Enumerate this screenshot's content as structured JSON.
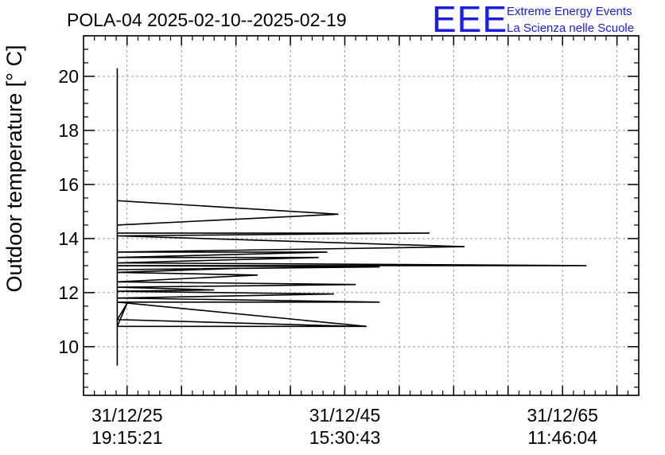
{
  "header": {
    "title": "POLA-04 2025-02-10--2025-02-19",
    "logo_text": "EEE",
    "logo_line1": "Extreme Energy Events",
    "logo_line2": "La Scienza nelle Scuole",
    "logo_color": "#1a1aff"
  },
  "chart_data": {
    "type": "line",
    "title": "POLA-04 2025-02-10--2025-02-19",
    "ylabel": "Outdoor temperature [° C]",
    "xlabel": "",
    "ylim": [
      8.2,
      21.5
    ],
    "xlim": [
      -0.2,
      2.35
    ],
    "yticks": [
      10,
      12,
      14,
      16,
      18,
      20
    ],
    "xticks": [
      {
        "value": 0,
        "label_date": "31/12/25",
        "label_time": "19:15:21"
      },
      {
        "value": 1,
        "label_date": "31/12/45",
        "label_time": "15:30:43"
      },
      {
        "value": 2,
        "label_date": "31/12/65",
        "label_time": "11:46:04"
      }
    ],
    "grid": true,
    "line_color": "#000000",
    "series": [
      {
        "x": [
          -0.045,
          -0.045,
          -0.045,
          0.97,
          -0.045,
          -0.045,
          1.39,
          -0.045,
          1.55,
          -0.045,
          0.92,
          -0.045,
          0.88,
          -0.045,
          2.11,
          -0.045,
          1.16,
          -0.045,
          0.52,
          -0.045,
          0.6,
          -0.045,
          1.05,
          -0.045,
          0.4,
          -0.045,
          0.95,
          -0.045,
          1.16,
          -0.045,
          1.1,
          -0.045,
          0.0,
          -0.045,
          1.05
        ],
        "y": [
          9.3,
          20.3,
          15.4,
          14.9,
          14.5,
          14.2,
          14.2,
          14.1,
          13.7,
          13.5,
          13.5,
          13.3,
          13.3,
          13.1,
          13.0,
          13.0,
          12.95,
          12.85,
          12.9,
          12.75,
          12.65,
          12.4,
          12.3,
          12.2,
          12.1,
          12.05,
          11.95,
          11.8,
          11.65,
          11.65,
          10.75,
          10.75,
          11.6,
          11.0,
          10.75
        ]
      }
    ]
  }
}
